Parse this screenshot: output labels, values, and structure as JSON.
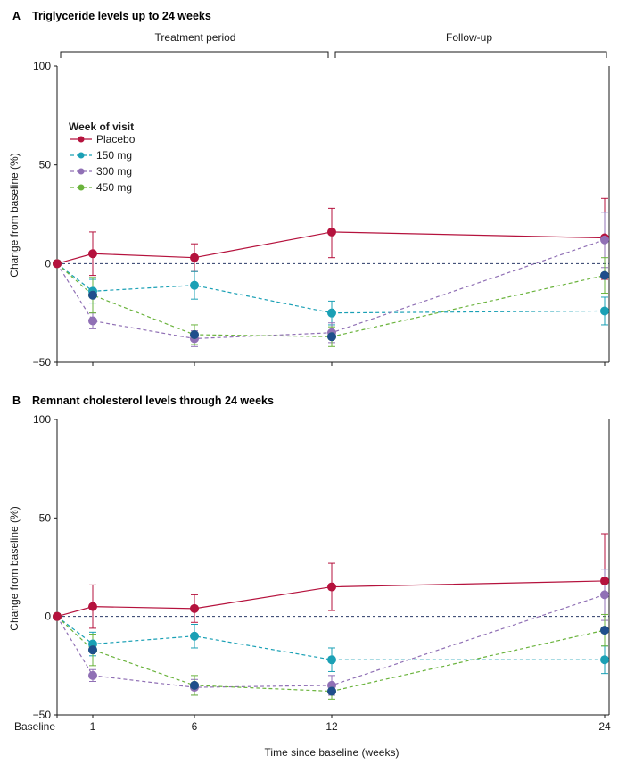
{
  "chart_data": [
    {
      "type": "line",
      "panel_letter": "A",
      "title": "Triglyceride levels up to 24 weeks",
      "period_labels": [
        "Treatment period",
        "Follow-up"
      ],
      "ylabel": "Change from baseline (%)",
      "xlabel": "",
      "ylim": [
        -50,
        100
      ],
      "yticks": [
        -50,
        0,
        50,
        100
      ],
      "x": [
        0,
        1,
        6,
        12,
        24
      ],
      "xtick_labels": [],
      "reference_line": 0,
      "legend": {
        "title": "Week of visit",
        "placement": "left"
      },
      "series": [
        {
          "name": "Placebo",
          "color": "#b5123d",
          "dashed": false,
          "values": [
            0,
            5,
            3,
            16,
            13
          ],
          "lower": [
            null,
            -6,
            -4,
            3,
            -8
          ],
          "upper": [
            null,
            16,
            10,
            28,
            33
          ]
        },
        {
          "name": "150 mg",
          "color": "#1aa0b5",
          "dashed": true,
          "values": [
            0,
            -14,
            -11,
            -25,
            -24
          ],
          "lower": [
            null,
            -20,
            -18,
            -31,
            -31
          ],
          "upper": [
            null,
            -8,
            -4,
            -19,
            -17
          ]
        },
        {
          "name": "300 mg",
          "color": "#9070b5",
          "dashed": true,
          "values": [
            0,
            -29,
            -38,
            -35,
            12
          ],
          "lower": [
            null,
            -33,
            -42,
            -40,
            -2
          ],
          "upper": [
            null,
            -25,
            -34,
            -30,
            26
          ]
        },
        {
          "name": "450 mg",
          "color": "#6ab33c",
          "dashed": true,
          "values": [
            0,
            -16,
            -36,
            -37,
            -6
          ],
          "lower": [
            null,
            -25,
            -41,
            -42,
            -15
          ],
          "upper": [
            null,
            -7,
            -31,
            -32,
            3
          ]
        },
        {
          "name": "",
          "color": "#1f4e8c",
          "dashed": false,
          "markers_only": true,
          "values": [
            null,
            -16,
            -36,
            -37,
            -6
          ],
          "lower": [],
          "upper": []
        }
      ]
    },
    {
      "type": "line",
      "panel_letter": "B",
      "title": "Remnant cholesterol levels through 24 weeks",
      "ylabel": "Change from baseline (%)",
      "xlabel": "Time since baseline (weeks)",
      "ylim": [
        -50,
        100
      ],
      "yticks": [
        -50,
        0,
        50,
        100
      ],
      "x": [
        0,
        1,
        6,
        12,
        24
      ],
      "xtick_labels": [
        "Baseline",
        "1",
        "6",
        "12",
        "24"
      ],
      "reference_line": 0,
      "series": [
        {
          "name": "Placebo",
          "color": "#b5123d",
          "dashed": false,
          "values": [
            0,
            5,
            4,
            15,
            18
          ],
          "lower": [
            null,
            -6,
            -3,
            3,
            -6
          ],
          "upper": [
            null,
            16,
            11,
            27,
            42
          ]
        },
        {
          "name": "150 mg",
          "color": "#1aa0b5",
          "dashed": true,
          "values": [
            0,
            -14,
            -10,
            -22,
            -22
          ],
          "lower": [
            null,
            -20,
            -16,
            -28,
            -29
          ],
          "upper": [
            null,
            -8,
            -4,
            -16,
            -15
          ]
        },
        {
          "name": "300 mg",
          "color": "#9070b5",
          "dashed": true,
          "values": [
            0,
            -30,
            -36,
            -35,
            11
          ],
          "lower": [
            null,
            -33,
            -40,
            -40,
            -2
          ],
          "upper": [
            null,
            -27,
            -32,
            -30,
            24
          ]
        },
        {
          "name": "450 mg",
          "color": "#6ab33c",
          "dashed": true,
          "values": [
            0,
            -17,
            -35,
            -38,
            -7
          ],
          "lower": [
            null,
            -25,
            -40,
            -42,
            -15
          ],
          "upper": [
            null,
            -9,
            -30,
            -34,
            1
          ]
        },
        {
          "name": "",
          "color": "#1f4e8c",
          "dashed": false,
          "markers_only": true,
          "values": [
            null,
            -17,
            -35,
            -38,
            -7
          ],
          "lower": [],
          "upper": []
        }
      ]
    }
  ]
}
